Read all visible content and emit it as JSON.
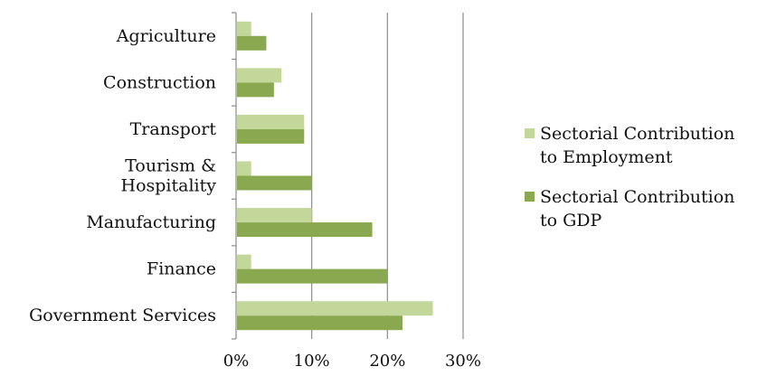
{
  "chart_data": {
    "type": "bar",
    "orientation": "horizontal",
    "title": "",
    "xlabel": "",
    "ylabel": "",
    "categories": [
      "Government Services",
      "Finance",
      "Manufacturing",
      "Tourism & Hospitality",
      "Transport",
      "Construction",
      "Agriculture"
    ],
    "category_label_lines": [
      [
        "Government Services"
      ],
      [
        "Finance"
      ],
      [
        "Manufacturing"
      ],
      [
        "Tourism &",
        "Hospitality"
      ],
      [
        "Transport"
      ],
      [
        "Construction"
      ],
      [
        "Agriculture"
      ]
    ],
    "series": [
      {
        "name": "Sectorial Contribution to Employment",
        "legend_lines": [
          "Sectorial Contribution",
          "to Employment"
        ],
        "color": "#c4d79b",
        "values": [
          26,
          2,
          10,
          2,
          9,
          6,
          2
        ]
      },
      {
        "name": "Sectorial Contribution to GDP",
        "legend_lines": [
          "Sectorial Contribution",
          "to GDP"
        ],
        "color": "#8aa84f",
        "values": [
          22,
          20,
          18,
          10,
          9,
          5,
          4
        ]
      }
    ],
    "xlim": [
      0,
      30
    ],
    "xticks": [
      0,
      10,
      20,
      30
    ],
    "xtick_labels": [
      "0%",
      "10%",
      "20%",
      "30%"
    ],
    "grid": "vertical",
    "gridline_color": "#8c8c8c",
    "legend_position": "right"
  }
}
